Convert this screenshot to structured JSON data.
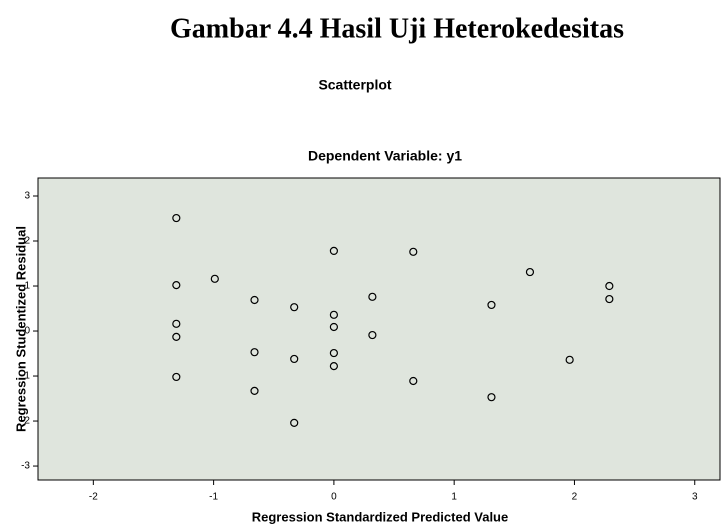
{
  "caption": "Gambar 4.4 Hasil Uji Heterokedesitas",
  "chart_data": {
    "type": "scatter",
    "title": "Scatterplot",
    "subtitle": "Dependent Variable: y1",
    "x_label": "Regression Standardized Predicted Value",
    "y_label": "Regression Studentized Residual",
    "plot_background": "#dfe5dd",
    "marker_color": "#000000",
    "xlim": [
      -2.46,
      3.21
    ],
    "xticks": [
      -2,
      -1,
      0,
      1,
      2,
      3
    ],
    "ylim": [
      -3.31,
      3.4
    ],
    "yticks": [
      -3,
      -2,
      -1,
      0,
      1,
      2,
      3
    ],
    "x": [
      -1.31,
      -1.31,
      -1.31,
      -1.31,
      -1.31,
      -0.99,
      -0.66,
      -0.66,
      -0.66,
      -0.33,
      -0.33,
      -0.33,
      0,
      0,
      0,
      0,
      0,
      0.32,
      0.32,
      0.66,
      0.66,
      1.31,
      1.31,
      1.63,
      1.96,
      2.29,
      2.29
    ],
    "y": [
      2.51,
      1.02,
      0.16,
      -0.13,
      -1.02,
      1.16,
      0.69,
      -0.47,
      -1.33,
      0.53,
      -0.62,
      -2.04,
      1.78,
      0.36,
      0.09,
      -0.49,
      -0.78,
      0.76,
      -0.09,
      1.76,
      -1.11,
      0.58,
      -1.47,
      1.31,
      -0.64,
      1.0,
      0.71
    ]
  }
}
